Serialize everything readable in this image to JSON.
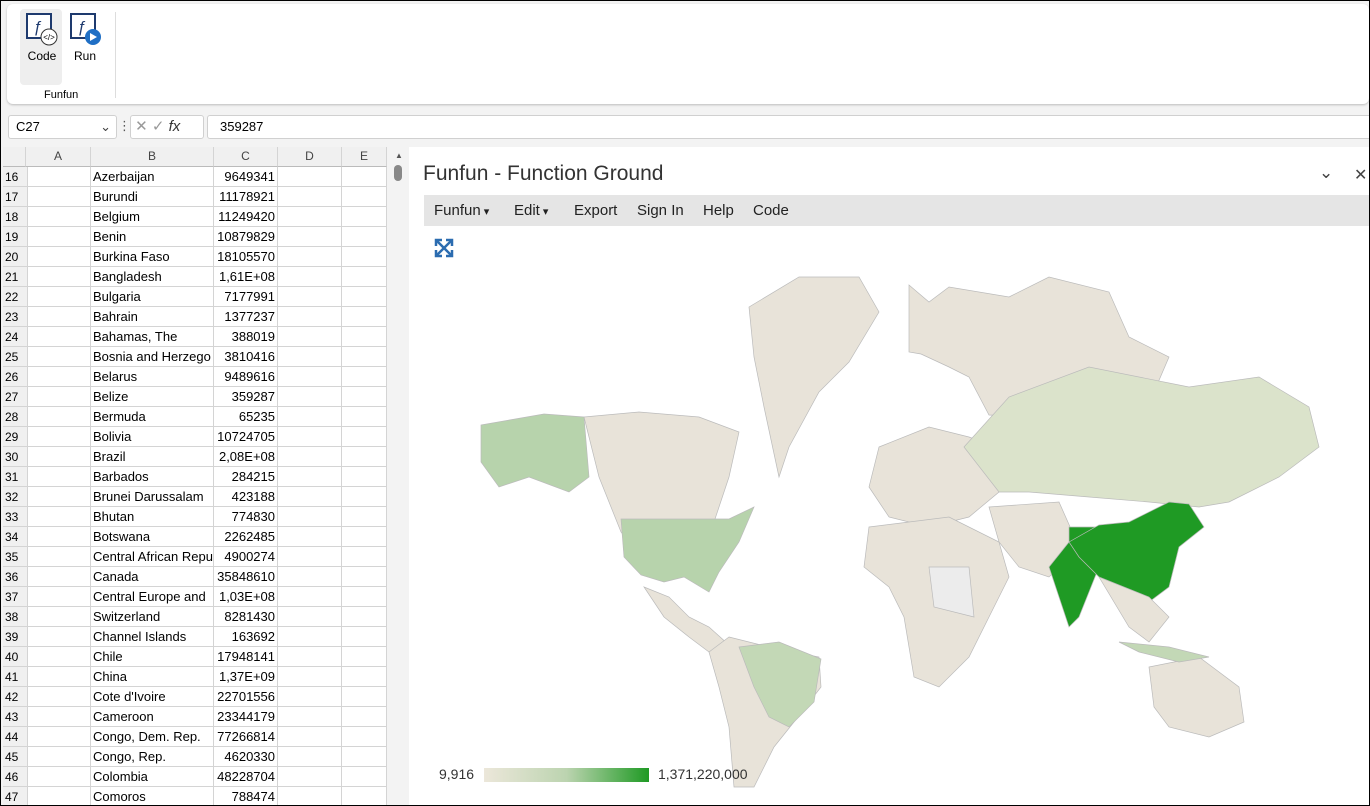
{
  "ribbon": {
    "buttons": [
      "Code",
      "Run"
    ],
    "group": "Funfun"
  },
  "formula_bar": {
    "name_box": "C27",
    "formula": "359287"
  },
  "sheet": {
    "columns": [
      "A",
      "B",
      "C",
      "D",
      "E"
    ],
    "rows": [
      {
        "row": "16",
        "b": "Azerbaijan",
        "c": "9649341"
      },
      {
        "row": "17",
        "b": "Burundi",
        "c": "11178921"
      },
      {
        "row": "18",
        "b": "Belgium",
        "c": "11249420"
      },
      {
        "row": "19",
        "b": "Benin",
        "c": "10879829"
      },
      {
        "row": "20",
        "b": "Burkina Faso",
        "c": "18105570"
      },
      {
        "row": "21",
        "b": "Bangladesh",
        "c": "1,61E+08"
      },
      {
        "row": "22",
        "b": "Bulgaria",
        "c": "7177991"
      },
      {
        "row": "23",
        "b": "Bahrain",
        "c": "1377237"
      },
      {
        "row": "24",
        "b": "Bahamas, The",
        "c": "388019"
      },
      {
        "row": "25",
        "b": "Bosnia and Herzego",
        "c": "3810416"
      },
      {
        "row": "26",
        "b": "Belarus",
        "c": "9489616"
      },
      {
        "row": "27",
        "b": "Belize",
        "c": "359287"
      },
      {
        "row": "28",
        "b": "Bermuda",
        "c": "65235"
      },
      {
        "row": "29",
        "b": "Bolivia",
        "c": "10724705"
      },
      {
        "row": "30",
        "b": "Brazil",
        "c": "2,08E+08"
      },
      {
        "row": "31",
        "b": "Barbados",
        "c": "284215"
      },
      {
        "row": "32",
        "b": "Brunei Darussalam",
        "c": "423188"
      },
      {
        "row": "33",
        "b": "Bhutan",
        "c": "774830"
      },
      {
        "row": "34",
        "b": "Botswana",
        "c": "2262485"
      },
      {
        "row": "35",
        "b": "Central African Repu",
        "c": "4900274"
      },
      {
        "row": "36",
        "b": "Canada",
        "c": "35848610"
      },
      {
        "row": "37",
        "b": "Central Europe and",
        "c": "1,03E+08"
      },
      {
        "row": "38",
        "b": "Switzerland",
        "c": "8281430"
      },
      {
        "row": "39",
        "b": "Channel Islands",
        "c": "163692"
      },
      {
        "row": "40",
        "b": "Chile",
        "c": "17948141"
      },
      {
        "row": "41",
        "b": "China",
        "c": "1,37E+09"
      },
      {
        "row": "42",
        "b": "Cote d'Ivoire",
        "c": "22701556"
      },
      {
        "row": "43",
        "b": "Cameroon",
        "c": "23344179"
      },
      {
        "row": "44",
        "b": "Congo, Dem. Rep.",
        "c": "77266814"
      },
      {
        "row": "45",
        "b": "Congo, Rep.",
        "c": "4620330"
      },
      {
        "row": "46",
        "b": "Colombia",
        "c": "48228704"
      },
      {
        "row": "47",
        "b": "Comoros",
        "c": "788474"
      }
    ]
  },
  "panel": {
    "title": "Funfun - Function Ground",
    "menu": [
      "Funfun",
      "Edit",
      "Export",
      "Sign In",
      "Help",
      "Code"
    ],
    "legend": {
      "min": "9,916",
      "max": "1,371,220,000"
    }
  }
}
